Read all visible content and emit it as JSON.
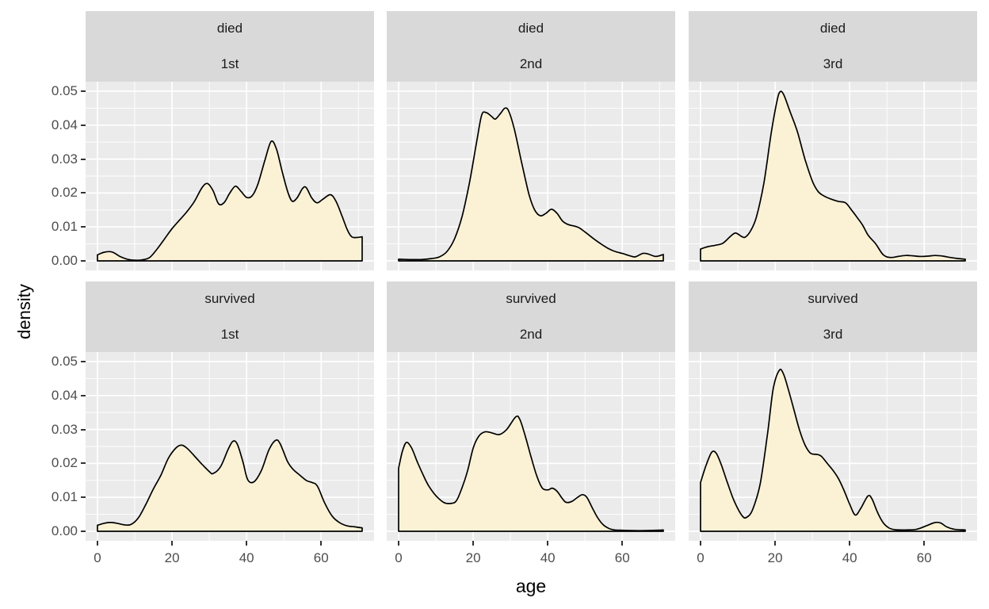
{
  "chart_data": {
    "type": "area",
    "subtype": "faceted_density",
    "title": "",
    "xlabel": "age",
    "ylabel": "density",
    "xlim": [
      0,
      71
    ],
    "ylim": [
      0,
      0.05
    ],
    "x_ticks": [
      0,
      20,
      40,
      60
    ],
    "x_minor_ticks": [
      10,
      30,
      50,
      70
    ],
    "y_ticks": [
      0,
      0.01,
      0.02,
      0.03,
      0.04,
      0.05
    ],
    "y_tick_labels": [
      "0.00",
      "0.01",
      "0.02",
      "0.03",
      "0.04",
      "0.05"
    ],
    "y_minor_ticks": [
      0.005,
      0.015,
      0.025,
      0.035,
      0.045
    ],
    "grid": true,
    "legend": "none",
    "facet_rows": [
      "died",
      "survived"
    ],
    "facet_cols": [
      "1st",
      "2nd",
      "3rd"
    ],
    "facets": [
      {
        "outcome": "died",
        "passenger_class": "1st",
        "points": [
          [
            0,
            0.0018
          ],
          [
            2,
            0.0026
          ],
          [
            4,
            0.0026
          ],
          [
            6,
            0.0013
          ],
          [
            8,
            0.0005
          ],
          [
            10,
            0.0002
          ],
          [
            12,
            0.0003
          ],
          [
            14,
            0.001
          ],
          [
            16,
            0.0035
          ],
          [
            18,
            0.0065
          ],
          [
            20,
            0.0095
          ],
          [
            22,
            0.012
          ],
          [
            24,
            0.0145
          ],
          [
            26,
            0.0175
          ],
          [
            28,
            0.0215
          ],
          [
            29.5,
            0.0228
          ],
          [
            31,
            0.0207
          ],
          [
            32.5,
            0.0168
          ],
          [
            34,
            0.0172
          ],
          [
            35.5,
            0.02
          ],
          [
            37,
            0.022
          ],
          [
            38.5,
            0.0205
          ],
          [
            40,
            0.0187
          ],
          [
            41.5,
            0.0192
          ],
          [
            43,
            0.0225
          ],
          [
            45,
            0.03
          ],
          [
            46.6,
            0.0352
          ],
          [
            48,
            0.033
          ],
          [
            49.5,
            0.0265
          ],
          [
            51,
            0.0205
          ],
          [
            52.2,
            0.0176
          ],
          [
            53.5,
            0.0185
          ],
          [
            55,
            0.0213
          ],
          [
            56,
            0.0216
          ],
          [
            57.5,
            0.0185
          ],
          [
            58.9,
            0.0171
          ],
          [
            60.5,
            0.0182
          ],
          [
            62.5,
            0.0195
          ],
          [
            64,
            0.0175
          ],
          [
            65.5,
            0.0135
          ],
          [
            67,
            0.0092
          ],
          [
            68.2,
            0.0071
          ],
          [
            69.5,
            0.0069
          ],
          [
            71,
            0.0071
          ]
        ]
      },
      {
        "outcome": "died",
        "passenger_class": "2nd",
        "points": [
          [
            0,
            0.0005
          ],
          [
            3,
            0.0004
          ],
          [
            6,
            0.0004
          ],
          [
            9,
            0.0007
          ],
          [
            11,
            0.0012
          ],
          [
            13,
            0.0028
          ],
          [
            15,
            0.0065
          ],
          [
            17,
            0.013
          ],
          [
            19,
            0.023
          ],
          [
            21,
            0.0355
          ],
          [
            22.3,
            0.043
          ],
          [
            23.5,
            0.0437
          ],
          [
            25,
            0.0425
          ],
          [
            26,
            0.0418
          ],
          [
            27.5,
            0.0437
          ],
          [
            28.5,
            0.045
          ],
          [
            29.5,
            0.0442
          ],
          [
            31,
            0.039
          ],
          [
            33,
            0.029
          ],
          [
            35,
            0.0195
          ],
          [
            36.5,
            0.015
          ],
          [
            38,
            0.0133
          ],
          [
            39.5,
            0.014
          ],
          [
            41,
            0.0152
          ],
          [
            42.5,
            0.014
          ],
          [
            44,
            0.0117
          ],
          [
            45.5,
            0.0107
          ],
          [
            47,
            0.0103
          ],
          [
            48.5,
            0.0097
          ],
          [
            50,
            0.0085
          ],
          [
            52,
            0.0068
          ],
          [
            54,
            0.0052
          ],
          [
            56,
            0.0038
          ],
          [
            58,
            0.0028
          ],
          [
            60,
            0.0022
          ],
          [
            62,
            0.0015
          ],
          [
            63.5,
            0.0012
          ],
          [
            65.5,
            0.0022
          ],
          [
            67,
            0.002
          ],
          [
            69,
            0.0013
          ],
          [
            71,
            0.0019
          ]
        ]
      },
      {
        "outcome": "died",
        "passenger_class": "3rd",
        "points": [
          [
            0,
            0.0035
          ],
          [
            2,
            0.0042
          ],
          [
            4,
            0.0046
          ],
          [
            6,
            0.0052
          ],
          [
            8,
            0.0072
          ],
          [
            9.4,
            0.0082
          ],
          [
            11,
            0.0072
          ],
          [
            12,
            0.007
          ],
          [
            13.5,
            0.009
          ],
          [
            15,
            0.013
          ],
          [
            17,
            0.023
          ],
          [
            19,
            0.038
          ],
          [
            20.5,
            0.047
          ],
          [
            21.3,
            0.0498
          ],
          [
            22.3,
            0.049
          ],
          [
            24,
            0.044
          ],
          [
            26,
            0.038
          ],
          [
            28,
            0.03
          ],
          [
            30,
            0.0235
          ],
          [
            31.5,
            0.0205
          ],
          [
            33,
            0.0192
          ],
          [
            35,
            0.0182
          ],
          [
            37,
            0.0175
          ],
          [
            38.9,
            0.0171
          ],
          [
            40.5,
            0.015
          ],
          [
            42,
            0.0128
          ],
          [
            43.5,
            0.0105
          ],
          [
            45,
            0.0075
          ],
          [
            47,
            0.005
          ],
          [
            49,
            0.0018
          ],
          [
            50.9,
            0.001
          ],
          [
            53,
            0.0013
          ],
          [
            55,
            0.0016
          ],
          [
            57,
            0.0015
          ],
          [
            59,
            0.0013
          ],
          [
            61,
            0.0014
          ],
          [
            63,
            0.0016
          ],
          [
            65,
            0.0014
          ],
          [
            67,
            0.001
          ],
          [
            69,
            0.0007
          ],
          [
            71,
            0.0005
          ]
        ]
      },
      {
        "outcome": "survived",
        "passenger_class": "1st",
        "points": [
          [
            0,
            0.0018
          ],
          [
            2,
            0.0024
          ],
          [
            3.6,
            0.0026
          ],
          [
            5.5,
            0.0023
          ],
          [
            7.2,
            0.0019
          ],
          [
            9,
            0.002
          ],
          [
            11,
            0.004
          ],
          [
            13,
            0.008
          ],
          [
            15,
            0.0125
          ],
          [
            17,
            0.0165
          ],
          [
            19,
            0.0215
          ],
          [
            21,
            0.0245
          ],
          [
            22.5,
            0.0254
          ],
          [
            24,
            0.0245
          ],
          [
            26,
            0.0222
          ],
          [
            28,
            0.0198
          ],
          [
            30,
            0.0176
          ],
          [
            31,
            0.017
          ],
          [
            33,
            0.019
          ],
          [
            35,
            0.024
          ],
          [
            36.3,
            0.0265
          ],
          [
            37.5,
            0.0257
          ],
          [
            39,
            0.0205
          ],
          [
            40.3,
            0.0152
          ],
          [
            42,
            0.0146
          ],
          [
            44,
            0.018
          ],
          [
            46,
            0.024
          ],
          [
            47.8,
            0.0268
          ],
          [
            49,
            0.0258
          ],
          [
            51,
            0.0205
          ],
          [
            52.5,
            0.0182
          ],
          [
            54,
            0.0168
          ],
          [
            56,
            0.015
          ],
          [
            57.5,
            0.0144
          ],
          [
            59,
            0.0133
          ],
          [
            61,
            0.0082
          ],
          [
            63,
            0.0044
          ],
          [
            65,
            0.0025
          ],
          [
            67,
            0.0016
          ],
          [
            69,
            0.0013
          ],
          [
            71,
            0.001
          ]
        ]
      },
      {
        "outcome": "survived",
        "passenger_class": "2nd",
        "points": [
          [
            0,
            0.0186
          ],
          [
            1,
            0.0235
          ],
          [
            2.1,
            0.0262
          ],
          [
            3.5,
            0.0245
          ],
          [
            5,
            0.0205
          ],
          [
            6.5,
            0.0168
          ],
          [
            8,
            0.0135
          ],
          [
            10,
            0.0105
          ],
          [
            12.1,
            0.0085
          ],
          [
            14,
            0.0082
          ],
          [
            15.5,
            0.009
          ],
          [
            17,
            0.0128
          ],
          [
            18.5,
            0.0178
          ],
          [
            20,
            0.0245
          ],
          [
            21.5,
            0.028
          ],
          [
            23.2,
            0.0293
          ],
          [
            25,
            0.029
          ],
          [
            27,
            0.0285
          ],
          [
            29,
            0.03
          ],
          [
            31.4,
            0.0337
          ],
          [
            32.5,
            0.033
          ],
          [
            34,
            0.028
          ],
          [
            35.5,
            0.022
          ],
          [
            37,
            0.0165
          ],
          [
            38.5,
            0.0128
          ],
          [
            40,
            0.0122
          ],
          [
            41.2,
            0.0127
          ],
          [
            42.5,
            0.0118
          ],
          [
            44,
            0.0095
          ],
          [
            45,
            0.0085
          ],
          [
            46.5,
            0.0088
          ],
          [
            48,
            0.01
          ],
          [
            49.3,
            0.0108
          ],
          [
            50.5,
            0.01
          ],
          [
            52,
            0.0068
          ],
          [
            53.5,
            0.0038
          ],
          [
            55,
            0.0018
          ],
          [
            56.5,
            0.0008
          ],
          [
            58,
            0.0004
          ],
          [
            60,
            0.0003
          ],
          [
            63,
            0.0002
          ],
          [
            66,
            0.0002
          ],
          [
            69,
            0.0003
          ],
          [
            71,
            0.0004
          ]
        ]
      },
      {
        "outcome": "survived",
        "passenger_class": "3rd",
        "points": [
          [
            0,
            0.0144
          ],
          [
            1.5,
            0.0195
          ],
          [
            3,
            0.0233
          ],
          [
            4.2,
            0.023
          ],
          [
            5.5,
            0.0198
          ],
          [
            7,
            0.015
          ],
          [
            9,
            0.009
          ],
          [
            11.2,
            0.0045
          ],
          [
            12.5,
            0.0042
          ],
          [
            14,
            0.0065
          ],
          [
            16,
            0.014
          ],
          [
            18,
            0.029
          ],
          [
            19.5,
            0.042
          ],
          [
            21.1,
            0.0474
          ],
          [
            22.2,
            0.0465
          ],
          [
            23.5,
            0.042
          ],
          [
            25,
            0.036
          ],
          [
            26.5,
            0.03
          ],
          [
            28,
            0.0255
          ],
          [
            29.5,
            0.023
          ],
          [
            31.5,
            0.0226
          ],
          [
            32.5,
            0.022
          ],
          [
            34,
            0.02
          ],
          [
            35.5,
            0.018
          ],
          [
            37,
            0.0155
          ],
          [
            38.5,
            0.012
          ],
          [
            40,
            0.008
          ],
          [
            41.5,
            0.0048
          ],
          [
            43,
            0.0068
          ],
          [
            44.9,
            0.0104
          ],
          [
            46,
            0.0095
          ],
          [
            47.5,
            0.0055
          ],
          [
            49,
            0.0025
          ],
          [
            50.5,
            0.001
          ],
          [
            52,
            0.0005
          ],
          [
            55,
            0.0004
          ],
          [
            58,
            0.0006
          ],
          [
            60.5,
            0.0016
          ],
          [
            63,
            0.0026
          ],
          [
            64.5,
            0.0024
          ],
          [
            66,
            0.0013
          ],
          [
            68,
            0.0006
          ],
          [
            71,
            0.0004
          ]
        ]
      }
    ]
  },
  "style": {
    "figure_background": "#FFFFFF",
    "panel_background": "#EBEBEB",
    "strip_background": "#D9D9D9",
    "grid_color": "#FFFFFF",
    "curve_color": "#000000",
    "area_fill": "#FBF2D6",
    "tick_mark_color": "#333333",
    "tick_label_color": "#4D4D4D",
    "strip_text_color": "#1A1A1A",
    "axis_title_color": "#000000"
  }
}
